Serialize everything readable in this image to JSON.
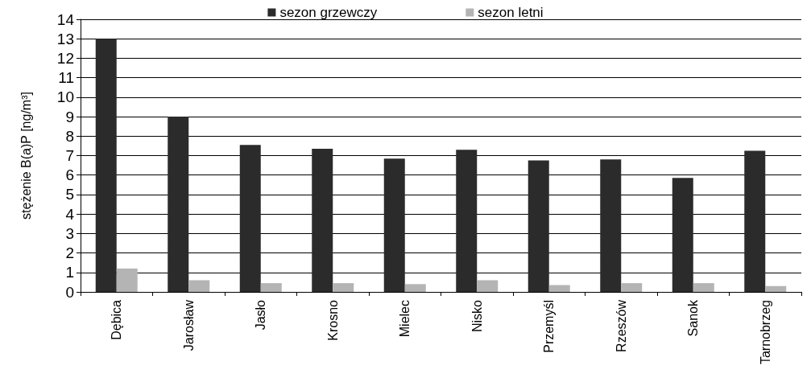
{
  "chart_data": {
    "type": "bar",
    "ylabel": "stężenie B(a)P [ng/m³]",
    "categories": [
      "Dębica",
      "Jarosław",
      "Jasło",
      "Krosno",
      "Mielec",
      "Nisko",
      "Przemyśl",
      "Rzeszów",
      "Sanok",
      "Tarnobrzeg"
    ],
    "series": [
      {
        "name": "sezon grzewczy",
        "color": "#2b2b2b",
        "values": [
          13,
          9,
          7.55,
          7.35,
          6.85,
          7.3,
          6.75,
          6.8,
          5.85,
          7.25
        ]
      },
      {
        "name": "sezon letni",
        "color": "#b4b4b4",
        "values": [
          1.2,
          0.6,
          0.45,
          0.45,
          0.4,
          0.6,
          0.35,
          0.45,
          0.45,
          0.3
        ]
      }
    ],
    "ylim": [
      0,
      14
    ],
    "yticks": [
      0,
      1,
      2,
      3,
      4,
      5,
      6,
      7,
      8,
      9,
      10,
      11,
      12,
      13,
      14
    ],
    "grid": "y",
    "legend": "top"
  }
}
